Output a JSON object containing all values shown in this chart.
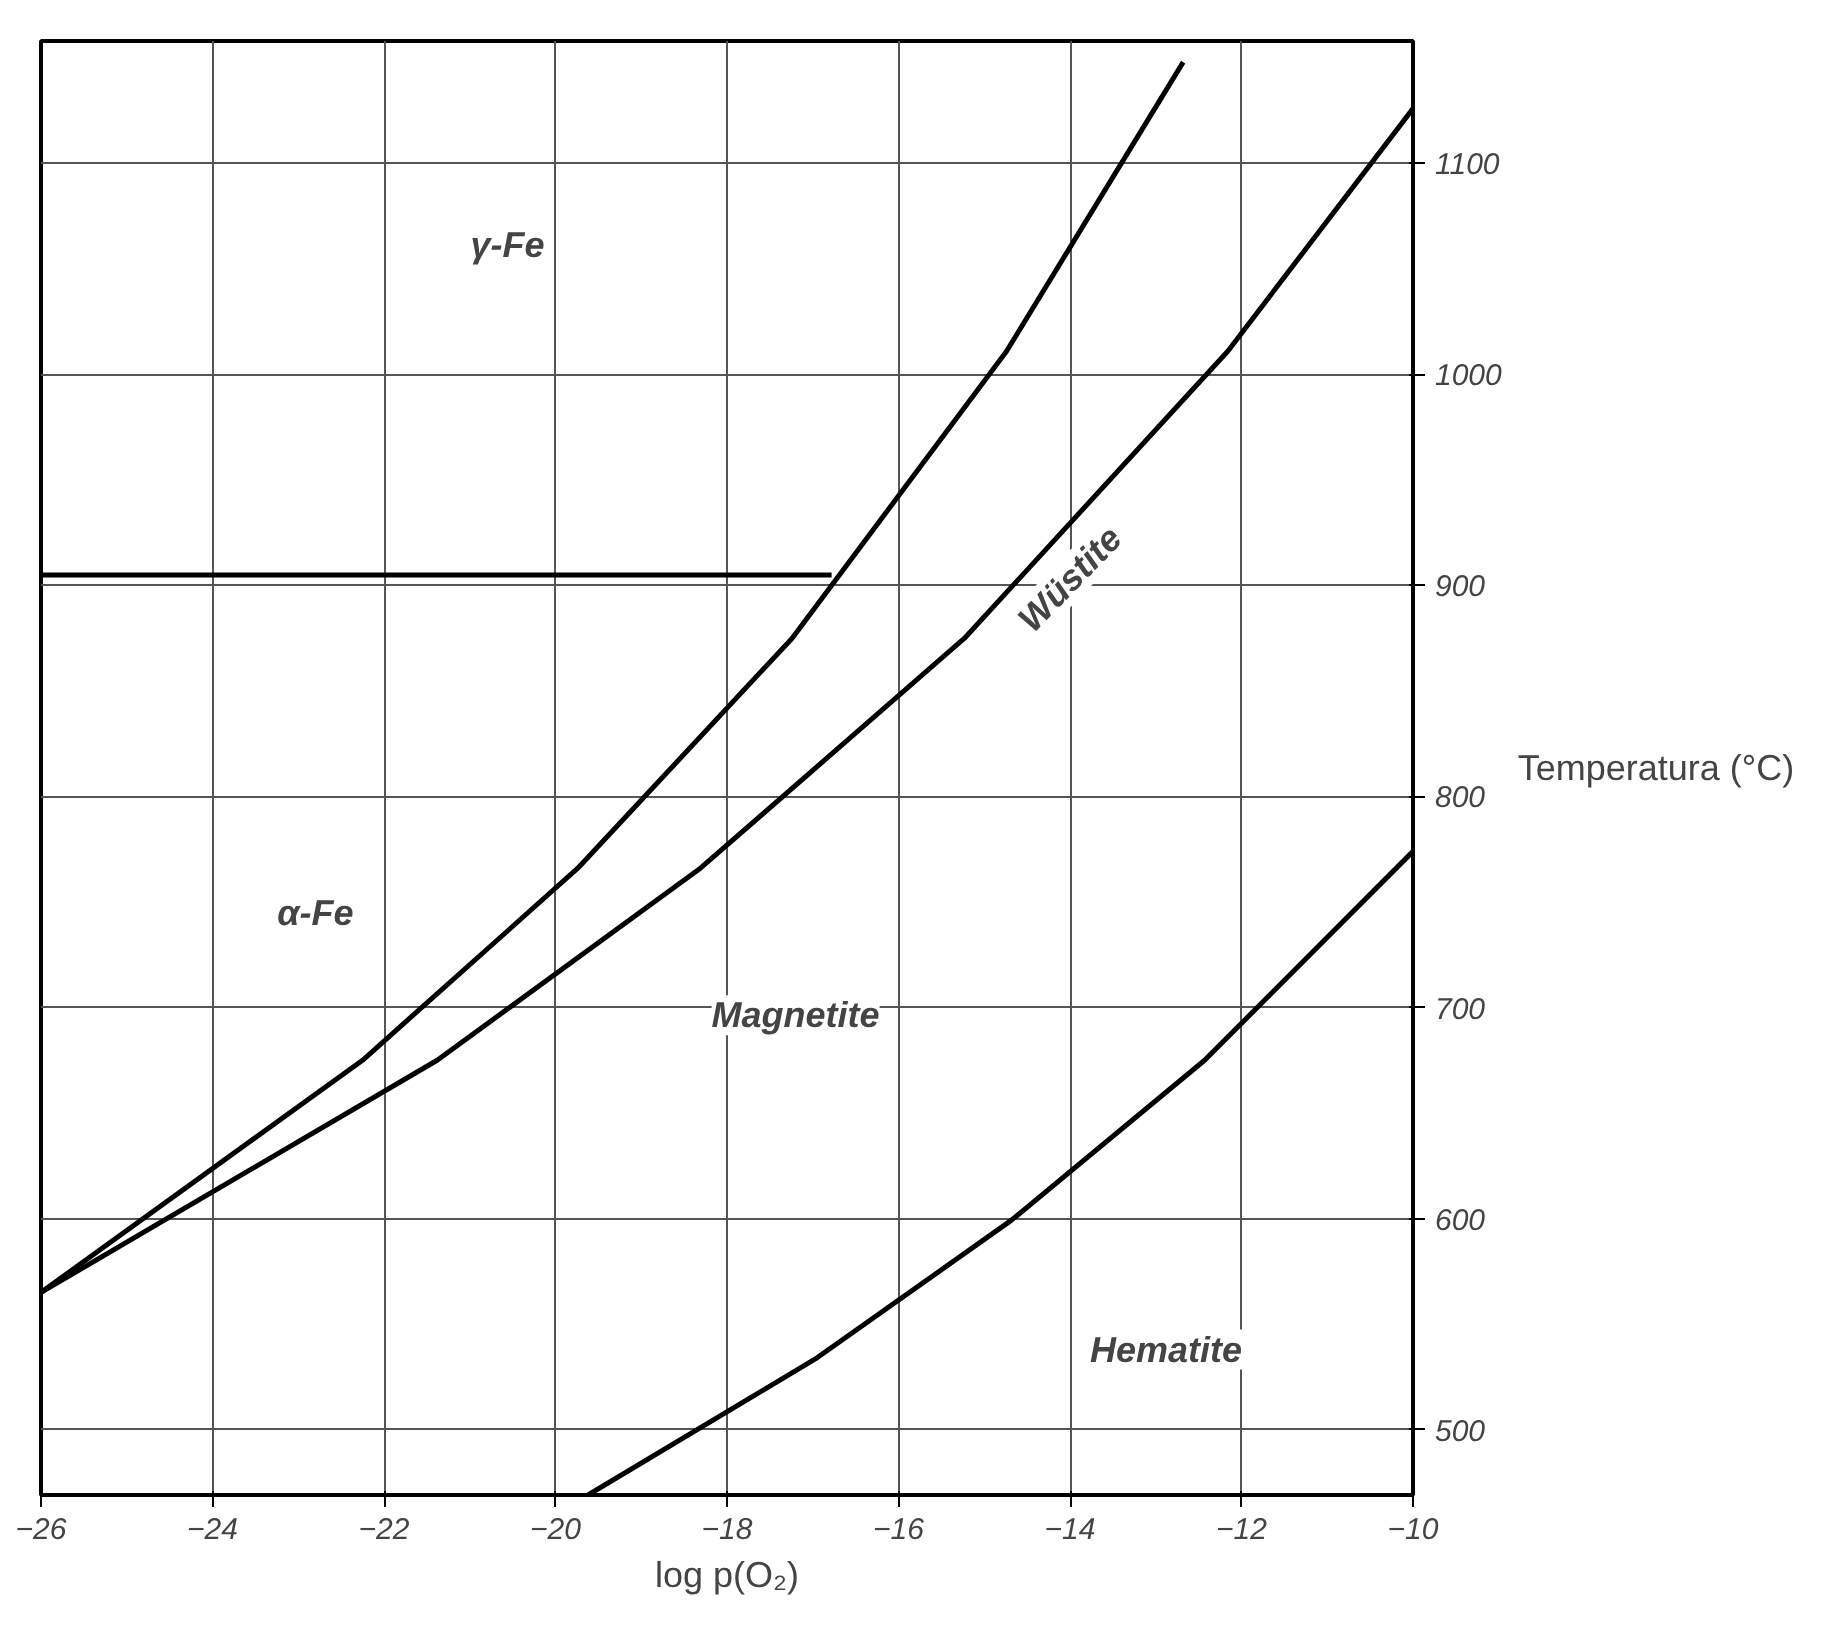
{
  "chart_data": {
    "type": "line",
    "xlabel": "log p(O₂)",
    "ylabel": "Temperatura (°C)",
    "xlim": [
      -26,
      -10
    ],
    "xticks": [
      -26,
      -24,
      -22,
      -20,
      -18,
      -16,
      -14,
      -12,
      -10
    ],
    "ylim": [
      469,
      1158
    ],
    "yticks": [
      500,
      600,
      700,
      800,
      900,
      1000,
      1100
    ],
    "grid": true,
    "marker": "none",
    "line_style": "solid",
    "series": [
      {
        "color": "#000000",
        "x": [
          -26,
          -22.25,
          -19.74,
          -17.24,
          -14.74,
          -12.68
        ],
        "values": [
          565,
          675,
          766,
          875,
          1011,
          1148
        ]
      },
      {
        "color": "#000000",
        "x": [
          -26,
          -21.38,
          -18.31,
          -15.23,
          -12.16,
          -10
        ],
        "values": [
          565,
          675,
          766,
          875,
          1011,
          1126
        ]
      },
      {
        "color": "#000000",
        "x": [
          -19.62,
          -16.95,
          -14.69,
          -12.43,
          -10
        ],
        "values": [
          469,
          534,
          599,
          675,
          774
        ]
      },
      {
        "color": "#000000",
        "x": [
          -26,
          -16.78
        ],
        "values": [
          905,
          905
        ]
      }
    ],
    "annotations": [
      "γ-Fe",
      "α-Fe",
      "Wüstite",
      "Magnetite",
      "Hematite"
    ]
  }
}
